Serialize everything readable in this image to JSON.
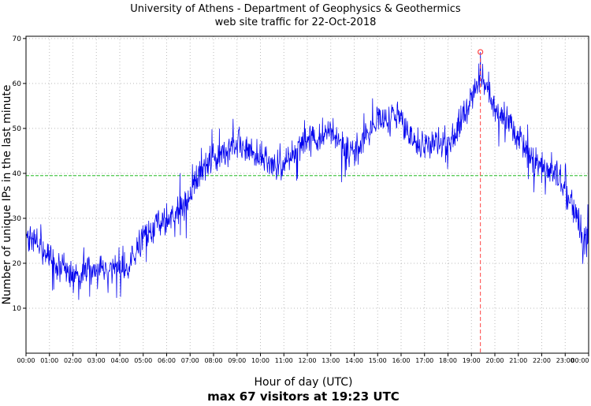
{
  "chart_data": {
    "type": "line",
    "title": "University of Athens - Department of Geophysics & Geothermics",
    "subtitle": "web site traffic for 22-Oct-2018",
    "xlabel": "Hour of day (UTC)",
    "ylabel": "Number of unique IPs in the last minute",
    "annotation": "max 67 visitors at 19:23 UTC",
    "xlim": [
      0,
      24
    ],
    "ylim": [
      0,
      70.5
    ],
    "y_ticks": [
      10,
      20,
      30,
      40,
      50,
      60,
      70
    ],
    "x_tick_labels": [
      "00:00",
      "01:00",
      "02:00",
      "03:00",
      "04:00",
      "05:00",
      "06:00",
      "07:00",
      "08:00",
      "09:00",
      "10:00",
      "11:00",
      "12:00",
      "13:00",
      "14:00",
      "15:00",
      "16:00",
      "17:00",
      "18:00",
      "19:00",
      "20:00",
      "21:00",
      "22:00",
      "23:00",
      "00:00"
    ],
    "grid": true,
    "legend": "none",
    "mean_line_value": 39.5,
    "max_point": {
      "time": "19:23",
      "hour_decimal": 19.3833,
      "value": 67
    },
    "series": {
      "name": "unique IPs per minute",
      "sample_interval_minutes": 1,
      "trend_x_hours": [
        0,
        0.5,
        1,
        1.5,
        2,
        2.5,
        3,
        3.5,
        4,
        4.3,
        4.7,
        5,
        5.5,
        6,
        6.5,
        7,
        7.5,
        8,
        8.5,
        9,
        9.5,
        10,
        10.5,
        11,
        11.5,
        12,
        12.5,
        13,
        13.3,
        13.7,
        14,
        14.3,
        14.7,
        15,
        15.5,
        15.9,
        16.2,
        16.5,
        17,
        17.5,
        18,
        18.5,
        19,
        19.38,
        19.7,
        20,
        20.5,
        21,
        21.5,
        22,
        22.5,
        23,
        23.5,
        23.8,
        24
      ],
      "trend_values": [
        27,
        24,
        21,
        19,
        17,
        17.5,
        18,
        18.5,
        19,
        17,
        23,
        26,
        28,
        30,
        31.5,
        34.5,
        41,
        43.5,
        45,
        46.5,
        45.5,
        43.5,
        42,
        41.5,
        45,
        48.5,
        47.5,
        50,
        48,
        45,
        44,
        47,
        49.5,
        51.5,
        51,
        54,
        50,
        47.5,
        45.5,
        47,
        45.5,
        51,
        56,
        62,
        58,
        55,
        52.5,
        48,
        43.5,
        41,
        40,
        37,
        30.5,
        24.5,
        26
      ],
      "noise_amplitude": 4,
      "data_min": 11,
      "data_max": 67
    },
    "colors": {
      "line": "#0000ee",
      "mean_line": "#00b000",
      "max_marker": "#ff4444",
      "grid": "#bbbbbb",
      "axis": "#000000"
    },
    "seed": 42
  }
}
